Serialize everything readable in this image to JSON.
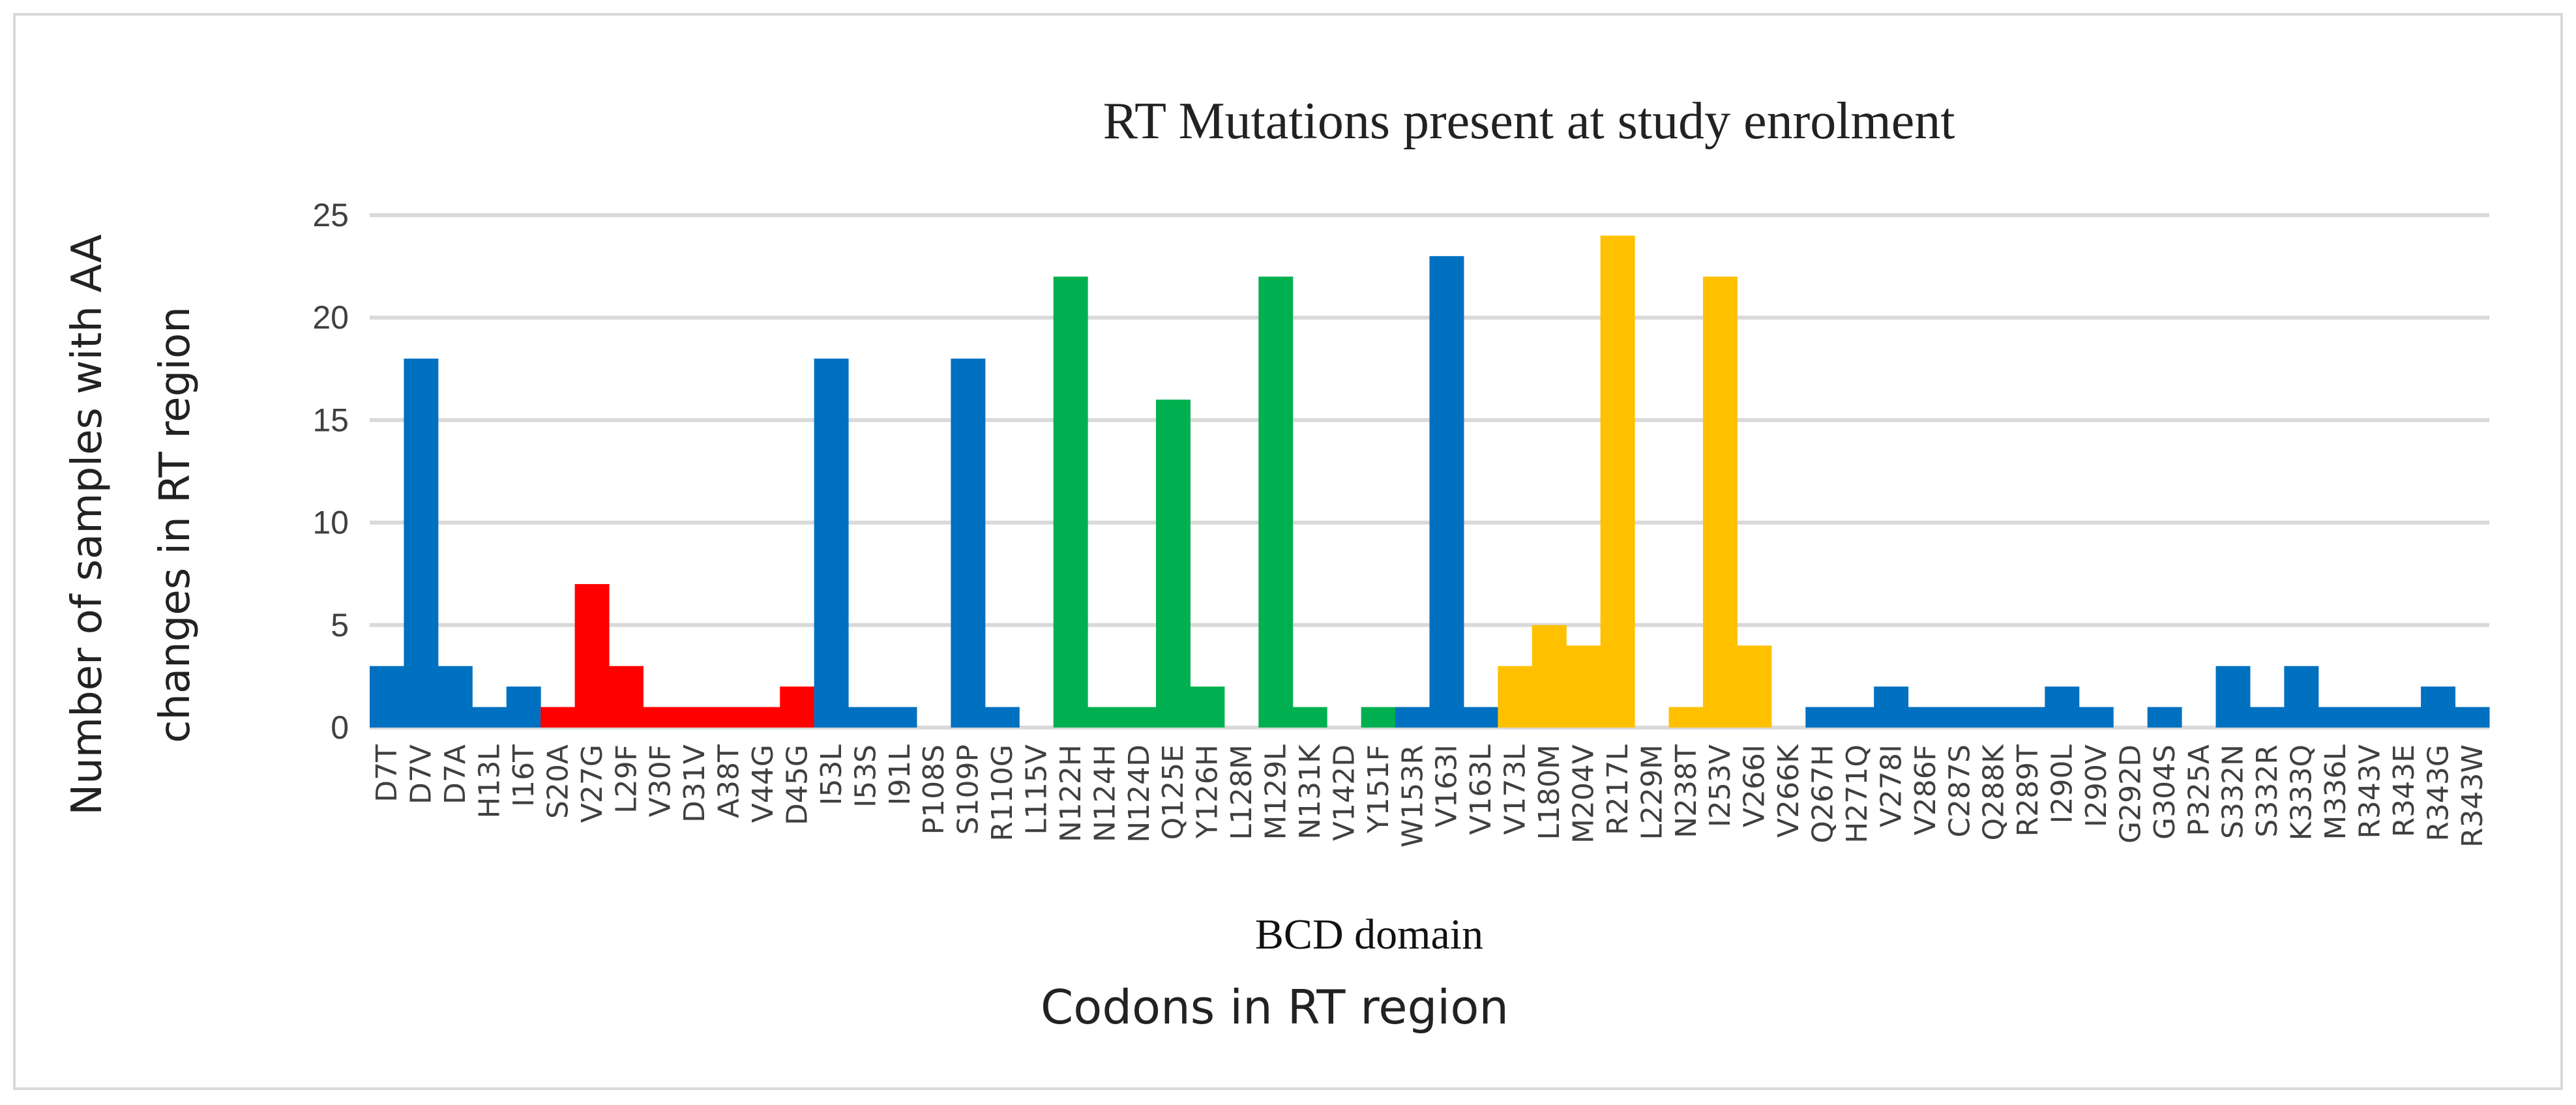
{
  "chart_data": {
    "type": "bar",
    "title": "RT Mutations present at study enrolment",
    "ylabel_lines": [
      "Number of samples with AA",
      "changes in RT region"
    ],
    "xlabel": "Codons in RT region",
    "annotation": "BCD domain",
    "ylim": [
      0,
      25
    ],
    "yticks": [
      0,
      5,
      10,
      15,
      20,
      25
    ],
    "grid": true,
    "colors": {
      "blue": "#0070C0",
      "red": "#FF0000",
      "green": "#00B050",
      "yellow": "#FFC000"
    },
    "categories": [
      "D7T",
      "D7V",
      "D7A",
      "H13L",
      "I16T",
      "S20A",
      "V27G",
      "L29F",
      "V30F",
      "D31V",
      "A38T",
      "V44G",
      "D45G",
      "I53L",
      "I53S",
      "I91L",
      "P108S",
      "S109P",
      "R110G",
      "L115V",
      "N122H",
      "N124H",
      "N124D",
      "Q125E",
      "Y126H",
      "L128M",
      "M129L",
      "N131K",
      "V142D",
      "Y151F",
      "W153R",
      "V163I",
      "V163L",
      "V173L",
      "L180M",
      "M204V",
      "R217L",
      "L229M",
      "N238T",
      "I253V",
      "V266I",
      "V266K",
      "Q267H",
      "H271Q",
      "V278I",
      "V286F",
      "C287S",
      "Q288K",
      "R289T",
      "I290L",
      "I290V",
      "G292D",
      "G304S",
      "P325A",
      "S332N",
      "S332R",
      "K333Q",
      "M336L",
      "R343V",
      "R343E",
      "R343G",
      "R343W"
    ],
    "values": [
      3,
      18,
      3,
      1,
      2,
      1,
      7,
      3,
      1,
      1,
      1,
      1,
      2,
      18,
      1,
      1,
      0,
      18,
      1,
      0,
      22,
      1,
      1,
      16,
      2,
      0,
      22,
      1,
      0,
      1,
      1,
      23,
      1,
      3,
      5,
      4,
      24,
      0,
      1,
      22,
      4,
      0,
      1,
      1,
      2,
      1,
      1,
      1,
      1,
      2,
      1,
      0,
      1,
      0,
      3,
      1,
      3,
      1,
      1,
      1,
      2,
      1
    ],
    "bar_colors": [
      "blue",
      "blue",
      "blue",
      "blue",
      "blue",
      "red",
      "red",
      "red",
      "red",
      "red",
      "red",
      "red",
      "red",
      "blue",
      "blue",
      "blue",
      "blue",
      "blue",
      "blue",
      "blue",
      "green",
      "green",
      "green",
      "green",
      "green",
      "green",
      "green",
      "green",
      "green",
      "green",
      "blue",
      "blue",
      "blue",
      "yellow",
      "yellow",
      "yellow",
      "yellow",
      "yellow",
      "yellow",
      "yellow",
      "yellow",
      "yellow",
      "blue",
      "blue",
      "blue",
      "blue",
      "blue",
      "blue",
      "blue",
      "blue",
      "blue",
      "blue",
      "blue",
      "blue",
      "blue",
      "blue",
      "blue",
      "blue",
      "blue",
      "blue",
      "blue",
      "blue"
    ]
  }
}
